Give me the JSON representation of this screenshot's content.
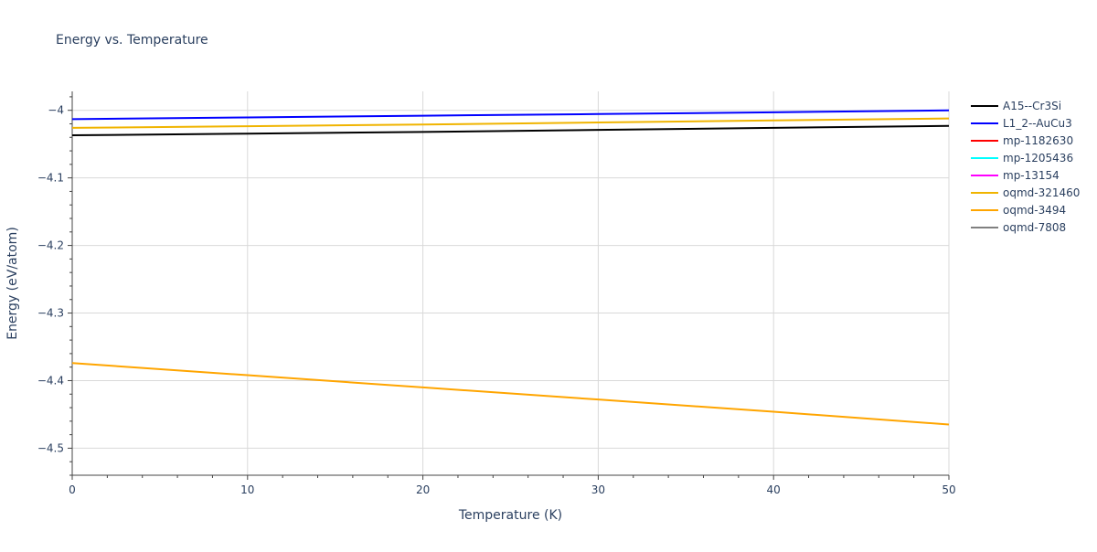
{
  "chart_data": {
    "type": "line",
    "title": "Energy vs. Temperature",
    "xlabel": "Temperature (K)",
    "ylabel": "Energy (eV/atom)",
    "xlim": [
      0,
      50
    ],
    "ylim": [
      -4.54,
      -3.972
    ],
    "x_ticks": [
      0,
      10,
      20,
      30,
      40,
      50
    ],
    "x_tick_labels": [
      "0",
      "10",
      "20",
      "30",
      "40",
      "50"
    ],
    "y_ticks": [
      -4.0,
      -4.1,
      -4.2,
      -4.3,
      -4.4,
      -4.5
    ],
    "y_tick_labels": [
      "−4",
      "−4.1",
      "−4.2",
      "−4.3",
      "−4.4",
      "−4.5"
    ],
    "grid": true,
    "legend_position": "right",
    "series": [
      {
        "name": "A15--Cr3Si",
        "color": "#000000",
        "x": [
          0,
          10,
          20,
          30,
          40,
          50
        ],
        "values": [
          -4.037,
          -4.0345,
          -4.032,
          -4.029,
          -4.026,
          -4.023
        ]
      },
      {
        "name": "L1_2--AuCu3",
        "color": "#0000ff",
        "x": [
          0,
          10,
          20,
          30,
          40,
          50
        ],
        "values": [
          -4.013,
          -4.0105,
          -4.008,
          -4.0055,
          -4.003,
          -4.0
        ]
      },
      {
        "name": "mp-1182630",
        "color": "#ff0000",
        "x": [],
        "values": []
      },
      {
        "name": "mp-1205436",
        "color": "#00ffff",
        "x": [],
        "values": []
      },
      {
        "name": "mp-13154",
        "color": "#ff00ff",
        "x": [],
        "values": []
      },
      {
        "name": "oqmd-321460",
        "color": "#f0b400",
        "x": [
          0,
          10,
          20,
          30,
          40,
          50
        ],
        "values": [
          -4.026,
          -4.0235,
          -4.021,
          -4.018,
          -4.015,
          -4.012
        ]
      },
      {
        "name": "oqmd-3494",
        "color": "#ffa500",
        "x": [
          0,
          10,
          20,
          30,
          40,
          50
        ],
        "values": [
          -4.374,
          -4.392,
          -4.41,
          -4.428,
          -4.446,
          -4.465
        ]
      },
      {
        "name": "oqmd-7808",
        "color": "#808080",
        "x": [],
        "values": []
      }
    ]
  }
}
